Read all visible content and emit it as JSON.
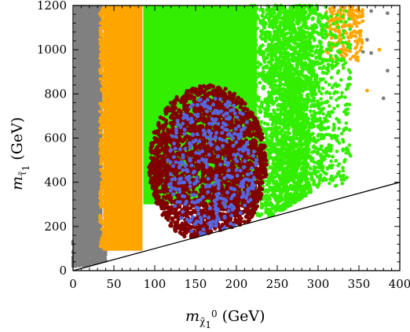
{
  "chart_data": {
    "type": "scatter",
    "title": "",
    "xlabel": "m",
    "xlabel_sub": "χ̃",
    "xlabel_sub2": "1",
    "xlabel_sup": "0",
    "xlabel_unit": "(GeV)",
    "ylabel": "m",
    "ylabel_sub": "τ̃",
    "ylabel_sub2": "1",
    "ylabel_unit": "(GeV)",
    "xlim": [
      0,
      400
    ],
    "ylim": [
      0,
      1200
    ],
    "xticks": [
      "0",
      "50",
      "100",
      "150",
      "200",
      "250",
      "300",
      "350",
      "400"
    ],
    "yticks": [
      "0",
      "200",
      "400",
      "600",
      "800",
      "1000",
      "1200"
    ],
    "grid": false,
    "legend": "none",
    "diagonal_line": {
      "x": [
        0,
        400
      ],
      "y": [
        0,
        400
      ]
    },
    "regions": [
      {
        "color": "#808080",
        "description_id": "grey",
        "x_range": [
          0,
          35
        ],
        "y_range": [
          20,
          1200
        ],
        "density": "dense"
      },
      {
        "color": "#ffa500",
        "description_id": "orange",
        "x_range": [
          35,
          85
        ],
        "y_range": [
          90,
          1200
        ],
        "density": "dense"
      },
      {
        "color": "#33ee00",
        "description_id": "green",
        "x_range": [
          85,
          320
        ],
        "y_range": [
          150,
          1200
        ],
        "density": "dense"
      },
      {
        "color": "#800000",
        "description_id": "maroon",
        "x_range": [
          85,
          245
        ],
        "y_range": [
          130,
          840
        ],
        "density": "dense"
      },
      {
        "color": "#5566dd",
        "description_id": "blue",
        "x_range": [
          115,
          225
        ],
        "y_range": [
          150,
          800
        ],
        "density": "sparse"
      }
    ],
    "outlier_points": [
      {
        "x": 365,
        "y": 1175,
        "color": "#808080"
      },
      {
        "x": 385,
        "y": 1165,
        "color": "#808080"
      },
      {
        "x": 360,
        "y": 1045,
        "color": "#808080"
      },
      {
        "x": 375,
        "y": 1000,
        "color": "#ffa500"
      },
      {
        "x": 365,
        "y": 985,
        "color": "#808080"
      },
      {
        "x": 355,
        "y": 990,
        "color": "#808080"
      },
      {
        "x": 385,
        "y": 905,
        "color": "#808080"
      },
      {
        "x": 360,
        "y": 815,
        "color": "#ffa500"
      },
      {
        "x": 380,
        "y": 780,
        "color": "#808080"
      },
      {
        "x": 325,
        "y": 1175,
        "color": "#ffa500"
      },
      {
        "x": 340,
        "y": 1160,
        "color": "#ffa500"
      }
    ]
  }
}
